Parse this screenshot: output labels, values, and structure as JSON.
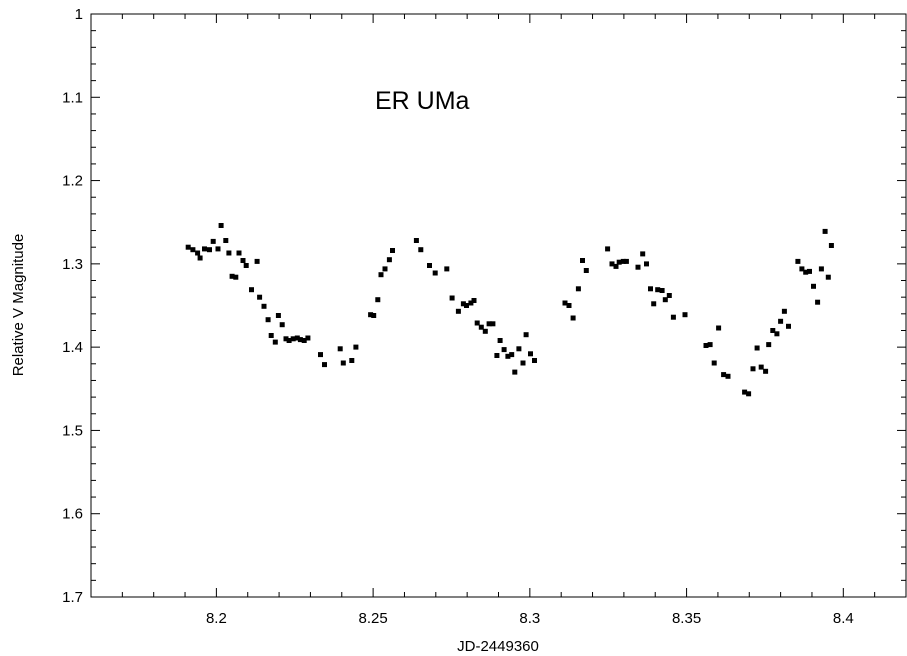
{
  "chart_data": {
    "type": "scatter",
    "title": "",
    "annotation": "ER UMa",
    "xlabel": "JD-2449360",
    "ylabel": "Relative V Magnitude",
    "xlim": [
      8.16,
      8.42
    ],
    "ylim": [
      1.7,
      1.0
    ],
    "y_inverted": true,
    "x_ticks": [
      8.2,
      8.25,
      8.3,
      8.35,
      8.4
    ],
    "x_tick_labels": [
      "8.2",
      "8.25",
      "8.3",
      "8.35",
      "8.4"
    ],
    "y_ticks": [
      1.0,
      1.1,
      1.2,
      1.3,
      1.4,
      1.5,
      1.6,
      1.7
    ],
    "y_tick_labels": [
      "1",
      "1.1",
      "1.2",
      "1.3",
      "1.4",
      "1.5",
      "1.6",
      "1.7"
    ],
    "grid": false,
    "marker_color": "#000000",
    "series": [
      {
        "points": [
          [
            8.191,
            1.28
          ],
          [
            8.1925,
            1.283
          ],
          [
            8.194,
            1.287
          ],
          [
            8.1948,
            1.293
          ],
          [
            8.1962,
            1.282
          ],
          [
            8.1978,
            1.283
          ],
          [
            8.199,
            1.273
          ],
          [
            8.2005,
            1.282
          ],
          [
            8.2015,
            1.254
          ],
          [
            8.203,
            1.272
          ],
          [
            8.204,
            1.287
          ],
          [
            8.205,
            1.315
          ],
          [
            8.2062,
            1.316
          ],
          [
            8.2072,
            1.287
          ],
          [
            8.2085,
            1.296
          ],
          [
            8.2095,
            1.302
          ],
          [
            8.2112,
            1.331
          ],
          [
            8.213,
            1.297
          ],
          [
            8.2138,
            1.34
          ],
          [
            8.2152,
            1.351
          ],
          [
            8.2165,
            1.367
          ],
          [
            8.2175,
            1.386
          ],
          [
            8.2188,
            1.394
          ],
          [
            8.2198,
            1.362
          ],
          [
            8.221,
            1.373
          ],
          [
            8.2222,
            1.39
          ],
          [
            8.2232,
            1.392
          ],
          [
            8.2245,
            1.39
          ],
          [
            8.2258,
            1.389
          ],
          [
            8.2268,
            1.391
          ],
          [
            8.228,
            1.392
          ],
          [
            8.2292,
            1.389
          ],
          [
            8.2332,
            1.409
          ],
          [
            8.2345,
            1.421
          ],
          [
            8.2395,
            1.402
          ],
          [
            8.2405,
            1.419
          ],
          [
            8.2432,
            1.416
          ],
          [
            8.2445,
            1.4
          ],
          [
            8.2492,
            1.361
          ],
          [
            8.2502,
            1.362
          ],
          [
            8.2515,
            1.343
          ],
          [
            8.2525,
            1.313
          ],
          [
            8.2538,
            1.306
          ],
          [
            8.2552,
            1.295
          ],
          [
            8.2562,
            1.284
          ],
          [
            8.2638,
            1.272
          ],
          [
            8.2652,
            1.283
          ],
          [
            8.268,
            1.302
          ],
          [
            8.2698,
            1.311
          ],
          [
            8.2735,
            1.306
          ],
          [
            8.2752,
            1.341
          ],
          [
            8.2772,
            1.357
          ],
          [
            8.2788,
            1.348
          ],
          [
            8.2798,
            1.35
          ],
          [
            8.2812,
            1.347
          ],
          [
            8.2822,
            1.344
          ],
          [
            8.2832,
            1.371
          ],
          [
            8.2845,
            1.376
          ],
          [
            8.2858,
            1.381
          ],
          [
            8.287,
            1.372
          ],
          [
            8.2882,
            1.372
          ],
          [
            8.2895,
            1.41
          ],
          [
            8.2905,
            1.392
          ],
          [
            8.2918,
            1.403
          ],
          [
            8.293,
            1.411
          ],
          [
            8.2942,
            1.409
          ],
          [
            8.2952,
            1.43
          ],
          [
            8.2965,
            1.402
          ],
          [
            8.2978,
            1.419
          ],
          [
            8.2988,
            1.385
          ],
          [
            8.3002,
            1.408
          ],
          [
            8.3015,
            1.416
          ],
          [
            8.3112,
            1.347
          ],
          [
            8.3125,
            1.35
          ],
          [
            8.3138,
            1.365
          ],
          [
            8.3155,
            1.33
          ],
          [
            8.3168,
            1.296
          ],
          [
            8.318,
            1.308
          ],
          [
            8.3248,
            1.282
          ],
          [
            8.3262,
            1.3
          ],
          [
            8.3275,
            1.303
          ],
          [
            8.3285,
            1.298
          ],
          [
            8.3298,
            1.297
          ],
          [
            8.3308,
            1.297
          ],
          [
            8.3345,
            1.304
          ],
          [
            8.336,
            1.288
          ],
          [
            8.3372,
            1.3
          ],
          [
            8.3385,
            1.33
          ],
          [
            8.3395,
            1.348
          ],
          [
            8.3408,
            1.331
          ],
          [
            8.3422,
            1.332
          ],
          [
            8.3432,
            1.343
          ],
          [
            8.3445,
            1.338
          ],
          [
            8.3458,
            1.364
          ],
          [
            8.3495,
            1.361
          ],
          [
            8.3562,
            1.398
          ],
          [
            8.3575,
            1.397
          ],
          [
            8.3588,
            1.419
          ],
          [
            8.3602,
            1.377
          ],
          [
            8.3618,
            1.433
          ],
          [
            8.3632,
            1.435
          ],
          [
            8.3685,
            1.454
          ],
          [
            8.3698,
            1.456
          ],
          [
            8.3712,
            1.426
          ],
          [
            8.3725,
            1.401
          ],
          [
            8.3738,
            1.424
          ],
          [
            8.3752,
            1.429
          ],
          [
            8.3762,
            1.397
          ],
          [
            8.3775,
            1.38
          ],
          [
            8.3788,
            1.384
          ],
          [
            8.38,
            1.369
          ],
          [
            8.3812,
            1.357
          ],
          [
            8.3825,
            1.375
          ],
          [
            8.3855,
            1.297
          ],
          [
            8.3868,
            1.306
          ],
          [
            8.388,
            1.31
          ],
          [
            8.3892,
            1.309
          ],
          [
            8.3905,
            1.327
          ],
          [
            8.3918,
            1.346
          ],
          [
            8.393,
            1.306
          ],
          [
            8.3942,
            1.261
          ],
          [
            8.3952,
            1.316
          ],
          [
            8.3962,
            1.278
          ]
        ]
      }
    ]
  }
}
